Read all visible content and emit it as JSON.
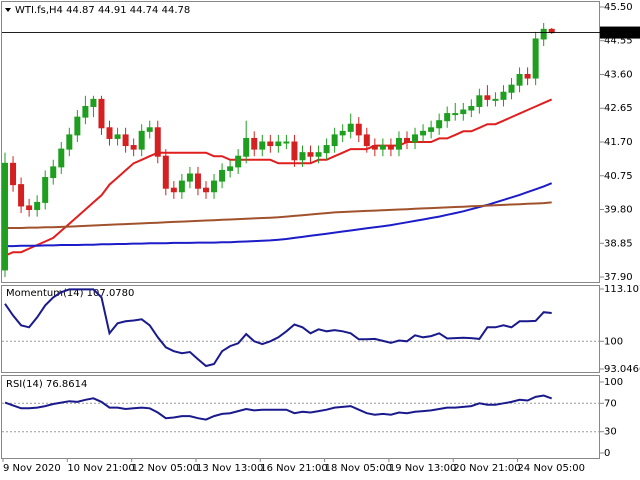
{
  "chart_data": [
    {
      "type": "candlestick",
      "title": "WTI.fs,H4",
      "categories": [
        "9 Nov 2020",
        null,
        null,
        null,
        null,
        null,
        null,
        null,
        "10 Nov 21:00",
        null,
        null,
        null,
        null,
        null,
        null,
        null,
        "12 Nov 05:00",
        null,
        null,
        null,
        null,
        null,
        null,
        null,
        "13 Nov 13:00",
        null,
        null,
        null,
        null,
        null,
        null,
        null,
        "16 Nov 21:00",
        null,
        null,
        null,
        null,
        null,
        null,
        null,
        "18 Nov 05:00",
        null,
        null,
        null,
        null,
        null,
        null,
        null,
        "19 Nov 13:00",
        null,
        null,
        null,
        null,
        null,
        null,
        null,
        "20 Nov 21:00",
        null,
        null,
        null,
        null,
        null,
        null,
        null,
        "24 Nov 05:00",
        null,
        null,
        null,
        null
      ],
      "open": [
        38.1,
        41.1,
        40.5,
        39.9,
        39.8,
        40.0,
        40.7,
        41.0,
        41.5,
        41.9,
        42.4,
        42.7,
        42.9,
        42.1,
        41.8,
        41.9,
        41.6,
        41.5,
        42.0,
        42.1,
        41.3,
        40.4,
        40.3,
        40.6,
        40.8,
        40.4,
        40.3,
        40.6,
        40.9,
        41.0,
        41.3,
        41.8,
        41.5,
        41.7,
        41.6,
        41.7,
        41.7,
        41.2,
        41.4,
        41.3,
        41.4,
        41.6,
        41.9,
        42.0,
        42.2,
        41.9,
        41.6,
        41.5,
        41.6,
        41.5,
        41.8,
        41.7,
        41.9,
        42.0,
        42.1,
        42.3,
        42.5,
        42.5,
        42.6,
        42.7,
        43.0,
        42.9,
        42.9,
        43.1,
        43.3,
        43.6,
        43.5,
        44.6,
        44.87
      ],
      "high": [
        41.4,
        41.3,
        40.7,
        40.1,
        40.2,
        40.9,
        41.2,
        41.7,
        42.1,
        42.6,
        43.0,
        43.0,
        43.0,
        42.3,
        42.1,
        42.1,
        41.8,
        42.2,
        42.3,
        42.3,
        41.5,
        40.6,
        40.8,
        41.0,
        41.0,
        40.6,
        40.8,
        41.1,
        41.2,
        41.5,
        42.3,
        42.0,
        41.9,
        41.9,
        41.9,
        41.9,
        41.9,
        41.6,
        41.6,
        41.6,
        41.8,
        42.1,
        42.2,
        42.5,
        42.4,
        42.1,
        41.8,
        41.8,
        41.8,
        42.0,
        42.0,
        42.1,
        42.2,
        42.3,
        42.5,
        42.7,
        42.8,
        42.8,
        42.9,
        43.2,
        43.3,
        43.1,
        43.3,
        43.5,
        43.8,
        43.8,
        44.8,
        45.05,
        44.91
      ],
      "low": [
        37.9,
        40.3,
        39.7,
        39.6,
        39.6,
        39.8,
        40.5,
        40.8,
        41.3,
        41.7,
        42.2,
        42.4,
        41.9,
        41.6,
        41.6,
        41.4,
        41.3,
        41.3,
        41.8,
        41.1,
        40.2,
        40.1,
        40.1,
        40.4,
        40.2,
        40.1,
        40.1,
        40.4,
        40.7,
        40.8,
        41.1,
        41.3,
        41.3,
        41.4,
        41.4,
        41.5,
        41.0,
        41.0,
        41.1,
        41.1,
        41.2,
        41.4,
        41.7,
        41.8,
        41.7,
        41.4,
        41.3,
        41.3,
        41.3,
        41.3,
        41.5,
        41.5,
        41.7,
        41.8,
        41.9,
        42.1,
        42.3,
        42.3,
        42.4,
        42.5,
        42.7,
        42.7,
        42.7,
        42.9,
        43.1,
        43.3,
        43.3,
        44.4,
        44.74
      ],
      "close": [
        41.1,
        40.5,
        39.9,
        39.8,
        40.0,
        40.7,
        41.0,
        41.5,
        41.9,
        42.4,
        42.7,
        42.9,
        42.1,
        41.8,
        41.9,
        41.6,
        41.5,
        42.0,
        42.1,
        41.3,
        40.4,
        40.3,
        40.6,
        40.8,
        40.4,
        40.3,
        40.6,
        40.9,
        41.0,
        41.3,
        41.8,
        41.5,
        41.7,
        41.6,
        41.7,
        41.7,
        41.2,
        41.4,
        41.3,
        41.4,
        41.6,
        41.9,
        42.0,
        42.2,
        41.9,
        41.6,
        41.5,
        41.6,
        41.5,
        41.8,
        41.7,
        41.9,
        42.0,
        42.1,
        42.3,
        42.5,
        42.5,
        42.6,
        42.7,
        43.0,
        42.9,
        42.9,
        43.1,
        43.3,
        43.6,
        43.5,
        44.6,
        44.87,
        44.78
      ],
      "up_color": "#1f9e1f",
      "down_color": "#d42020",
      "overlays": [
        {
          "color": "#e01e1e",
          "values": [
            38.5,
            38.6,
            38.6,
            38.7,
            38.8,
            38.9,
            39.0,
            39.2,
            39.4,
            39.6,
            39.8,
            40.0,
            40.2,
            40.5,
            40.7,
            40.9,
            41.1,
            41.2,
            41.3,
            41.4,
            41.4,
            41.4,
            41.4,
            41.4,
            41.4,
            41.4,
            41.3,
            41.3,
            41.2,
            41.2,
            41.2,
            41.2,
            41.2,
            41.2,
            41.1,
            41.1,
            41.1,
            41.1,
            41.1,
            41.2,
            41.2,
            41.3,
            41.4,
            41.5,
            41.5,
            41.5,
            41.6,
            41.6,
            41.6,
            41.6,
            41.7,
            41.7,
            41.7,
            41.7,
            41.8,
            41.8,
            41.9,
            42.0,
            42.0,
            42.1,
            42.2,
            42.2,
            42.3,
            42.4,
            42.5,
            42.6,
            42.7,
            42.8,
            42.9
          ]
        },
        {
          "color": "#1c1cc8",
          "values": [
            38.77,
            38.77,
            38.78,
            38.78,
            38.78,
            38.79,
            38.79,
            38.8,
            38.8,
            38.8,
            38.81,
            38.81,
            38.82,
            38.82,
            38.83,
            38.83,
            38.84,
            38.84,
            38.85,
            38.85,
            38.85,
            38.86,
            38.86,
            38.86,
            38.87,
            38.87,
            38.87,
            38.88,
            38.88,
            38.89,
            38.9,
            38.91,
            38.92,
            38.93,
            38.95,
            38.97,
            39.0,
            39.03,
            39.06,
            39.09,
            39.12,
            39.15,
            39.18,
            39.21,
            39.24,
            39.27,
            39.3,
            39.33,
            39.36,
            39.4,
            39.44,
            39.48,
            39.52,
            39.56,
            39.6,
            39.65,
            39.7,
            39.75,
            39.81,
            39.87,
            39.93,
            40.0,
            40.07,
            40.14,
            40.21,
            40.29,
            40.37,
            40.45,
            40.54
          ]
        },
        {
          "color": "#a0522d",
          "values": [
            39.28,
            39.28,
            39.28,
            39.29,
            39.29,
            39.3,
            39.3,
            39.31,
            39.32,
            39.33,
            39.34,
            39.35,
            39.36,
            39.37,
            39.38,
            39.39,
            39.4,
            39.41,
            39.42,
            39.43,
            39.44,
            39.45,
            39.46,
            39.47,
            39.48,
            39.49,
            39.5,
            39.51,
            39.52,
            39.53,
            39.54,
            39.55,
            39.56,
            39.57,
            39.58,
            39.6,
            39.62,
            39.64,
            39.66,
            39.68,
            39.7,
            39.72,
            39.73,
            39.74,
            39.75,
            39.76,
            39.77,
            39.78,
            39.79,
            39.8,
            39.81,
            39.82,
            39.83,
            39.84,
            39.85,
            39.86,
            39.87,
            39.88,
            39.89,
            39.9,
            39.91,
            39.92,
            39.93,
            39.94,
            39.95,
            39.96,
            39.97,
            39.98,
            40.0
          ]
        }
      ],
      "ylim": [
        37.76,
        45.64
      ],
      "yticks": [
        {
          "value": 45.5,
          "label": "45.50"
        },
        44.55,
        {
          "value": 43.6,
          "label": "43.60"
        },
        42.65,
        {
          "value": 41.7,
          "label": "41.70"
        },
        40.75,
        {
          "value": 39.8,
          "label": "39.80"
        },
        38.85,
        {
          "value": 37.9,
          "label": "37.90"
        }
      ]
    },
    {
      "type": "line",
      "title": "Momentum(14) 107.0780",
      "color": "#1a1a8c",
      "values": [
        109.4,
        106.5,
        104.0,
        103.5,
        106.0,
        109.0,
        111.0,
        112.3,
        113.0,
        113.0,
        113.0,
        113.0,
        111.0,
        102.0,
        104.5,
        105.0,
        105.2,
        105.5,
        104.0,
        101.0,
        98.5,
        97.5,
        97.0,
        97.3,
        95.5,
        93.8,
        94.3,
        97.5,
        98.8,
        99.5,
        101.8,
        100.0,
        99.3,
        100.0,
        101.0,
        102.5,
        104.2,
        103.5,
        102.0,
        103.0,
        102.5,
        102.8,
        102.5,
        102.0,
        100.5,
        100.5,
        100.6,
        100.1,
        99.6,
        100.2,
        100.0,
        101.5,
        101.0,
        101.3,
        102.0,
        100.7,
        100.8,
        100.9,
        100.8,
        100.6,
        103.5,
        103.5,
        104.0,
        103.5,
        105.0,
        105.0,
        105.1,
        107.3,
        107.078
      ],
      "ylim": [
        93.0466,
        113.1076
      ],
      "yticks": [
        93.0466,
        100,
        113.1076
      ]
    },
    {
      "type": "line",
      "title": "RSI(14) 76.8614",
      "color": "#1a1a8c",
      "values": [
        71,
        67,
        63,
        63,
        64,
        66,
        69,
        71,
        73,
        72,
        75,
        77,
        72,
        64,
        64,
        62,
        63,
        64,
        63,
        57,
        49,
        50,
        52,
        52,
        49,
        47,
        52,
        55,
        56,
        59,
        62,
        60,
        61,
        61,
        61,
        61,
        56,
        58,
        57,
        59,
        61,
        64,
        65,
        66,
        61,
        56,
        54,
        55,
        54,
        57,
        56,
        58,
        59,
        60,
        62,
        64,
        64,
        65,
        66,
        70,
        68,
        68,
        70,
        72,
        75,
        74,
        79,
        81,
        76.8614
      ],
      "ylim": [
        0,
        100
      ],
      "yticks": [
        0,
        30,
        70,
        100
      ]
    }
  ]
}
